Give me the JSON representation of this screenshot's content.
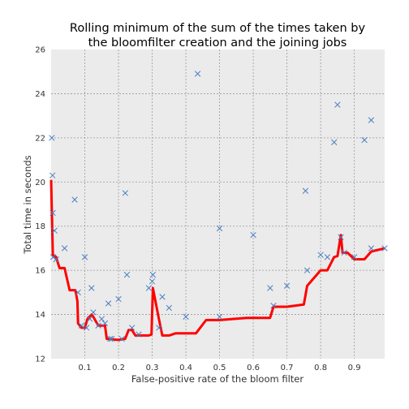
{
  "chart_data": {
    "type": "scatter",
    "title_lines": [
      "Rolling minimum of the sum of the times taken by",
      "the bloomfilter creation and the joining jobs"
    ],
    "xlabel": "False-positive rate of the bloom filter",
    "ylabel": "Total time in seconds",
    "xlim": [
      0.0,
      0.99
    ],
    "ylim": [
      12,
      26
    ],
    "xticks": [
      0.1,
      0.2,
      0.3,
      0.4,
      0.5,
      0.6,
      0.7,
      0.8,
      0.9
    ],
    "xtick_labels": [
      "0.1",
      "0.2",
      "0.3",
      "0.4",
      "0.5",
      "0.6",
      "0.7",
      "0.8",
      "0.9"
    ],
    "yticks": [
      12,
      14,
      16,
      18,
      20,
      22,
      24,
      26
    ],
    "ytick_labels": [
      "12",
      "14",
      "16",
      "18",
      "20",
      "22",
      "24",
      "26"
    ],
    "grid": true,
    "background": "#ebebeb",
    "scatter_color": "#4a7fc1",
    "line_color": "#ff0000",
    "series": [
      {
        "type": "scatter",
        "marker": "x",
        "points": [
          [
            0.002,
            22.0
          ],
          [
            0.004,
            20.3
          ],
          [
            0.005,
            18.6
          ],
          [
            0.006,
            16.6
          ],
          [
            0.01,
            17.8
          ],
          [
            0.015,
            16.5
          ],
          [
            0.04,
            17.0
          ],
          [
            0.07,
            19.2
          ],
          [
            0.08,
            15.0
          ],
          [
            0.09,
            13.5
          ],
          [
            0.1,
            16.6
          ],
          [
            0.105,
            13.4
          ],
          [
            0.115,
            13.8
          ],
          [
            0.12,
            15.2
          ],
          [
            0.125,
            14.1
          ],
          [
            0.14,
            13.5
          ],
          [
            0.15,
            13.8
          ],
          [
            0.16,
            13.6
          ],
          [
            0.17,
            14.5
          ],
          [
            0.175,
            12.9
          ],
          [
            0.18,
            12.9
          ],
          [
            0.2,
            14.7
          ],
          [
            0.21,
            12.9
          ],
          [
            0.22,
            19.5
          ],
          [
            0.225,
            15.8
          ],
          [
            0.24,
            13.4
          ],
          [
            0.26,
            13.1
          ],
          [
            0.29,
            15.2
          ],
          [
            0.3,
            15.5
          ],
          [
            0.302,
            15.8
          ],
          [
            0.32,
            13.4
          ],
          [
            0.33,
            14.8
          ],
          [
            0.35,
            14.3
          ],
          [
            0.4,
            13.9
          ],
          [
            0.435,
            24.9
          ],
          [
            0.5,
            17.9
          ],
          [
            0.5,
            13.9
          ],
          [
            0.6,
            17.6
          ],
          [
            0.65,
            15.2
          ],
          [
            0.66,
            14.4
          ],
          [
            0.7,
            15.3
          ],
          [
            0.755,
            19.6
          ],
          [
            0.76,
            16.0
          ],
          [
            0.8,
            16.7
          ],
          [
            0.82,
            16.6
          ],
          [
            0.84,
            21.8
          ],
          [
            0.85,
            23.5
          ],
          [
            0.86,
            17.5
          ],
          [
            0.87,
            16.8
          ],
          [
            0.9,
            16.6
          ],
          [
            0.93,
            21.9
          ],
          [
            0.95,
            22.8
          ],
          [
            0.95,
            17.0
          ],
          [
            0.99,
            17.0
          ]
        ]
      },
      {
        "type": "line",
        "points": [
          [
            0.0,
            20.1
          ],
          [
            0.005,
            16.7
          ],
          [
            0.015,
            16.6
          ],
          [
            0.025,
            16.1
          ],
          [
            0.04,
            16.1
          ],
          [
            0.055,
            15.1
          ],
          [
            0.072,
            15.1
          ],
          [
            0.078,
            14.6
          ],
          [
            0.08,
            13.6
          ],
          [
            0.09,
            13.4
          ],
          [
            0.1,
            13.4
          ],
          [
            0.108,
            13.8
          ],
          [
            0.12,
            14.0
          ],
          [
            0.125,
            13.9
          ],
          [
            0.14,
            13.5
          ],
          [
            0.16,
            13.5
          ],
          [
            0.165,
            12.9
          ],
          [
            0.2,
            12.85
          ],
          [
            0.22,
            12.9
          ],
          [
            0.23,
            13.3
          ],
          [
            0.24,
            13.3
          ],
          [
            0.25,
            13.05
          ],
          [
            0.29,
            13.05
          ],
          [
            0.298,
            13.1
          ],
          [
            0.302,
            15.2
          ],
          [
            0.32,
            13.8
          ],
          [
            0.33,
            13.05
          ],
          [
            0.35,
            13.05
          ],
          [
            0.37,
            13.15
          ],
          [
            0.43,
            13.15
          ],
          [
            0.46,
            13.75
          ],
          [
            0.5,
            13.75
          ],
          [
            0.58,
            13.85
          ],
          [
            0.65,
            13.85
          ],
          [
            0.66,
            14.35
          ],
          [
            0.7,
            14.35
          ],
          [
            0.75,
            14.45
          ],
          [
            0.76,
            15.3
          ],
          [
            0.8,
            16.0
          ],
          [
            0.82,
            16.0
          ],
          [
            0.84,
            16.6
          ],
          [
            0.85,
            16.65
          ],
          [
            0.86,
            17.6
          ],
          [
            0.865,
            16.8
          ],
          [
            0.88,
            16.8
          ],
          [
            0.9,
            16.5
          ],
          [
            0.93,
            16.5
          ],
          [
            0.95,
            16.85
          ],
          [
            0.99,
            17.0
          ]
        ]
      }
    ]
  }
}
